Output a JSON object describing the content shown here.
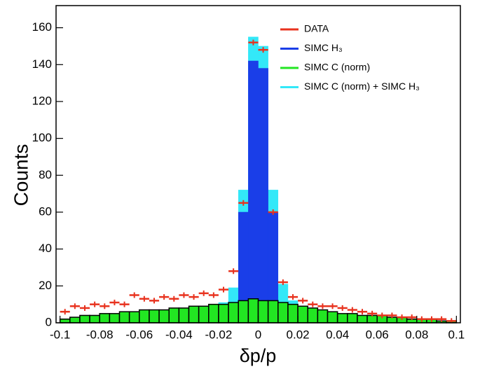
{
  "chart_data": {
    "type": "histogram",
    "xlabel": "δp/p",
    "ylabel": "Counts",
    "bins": [
      -0.1,
      -0.095,
      -0.09,
      -0.085,
      -0.08,
      -0.075,
      -0.07,
      -0.065,
      -0.06,
      -0.055,
      -0.05,
      -0.045,
      -0.04,
      -0.035,
      -0.03,
      -0.025,
      -0.02,
      -0.015,
      -0.01,
      -0.005,
      0,
      0.005,
      0.01,
      0.015,
      0.02,
      0.025,
      0.03,
      0.035,
      0.04,
      0.045,
      0.05,
      0.055,
      0.06,
      0.065,
      0.07,
      0.075,
      0.08,
      0.085,
      0.09,
      0.095,
      0.1
    ],
    "series": [
      {
        "name": "DATA",
        "color": "#e8321e",
        "filled": false,
        "values": [
          6,
          9,
          8,
          10,
          9,
          11,
          10,
          15,
          13,
          12,
          14,
          13,
          15,
          14,
          16,
          15,
          18,
          28,
          65,
          152,
          148,
          60,
          22,
          14,
          12,
          10,
          9,
          9,
          8,
          7,
          6,
          5,
          4,
          4,
          3,
          3,
          2,
          2,
          2,
          1
        ]
      },
      {
        "name": "SIMC H₃",
        "color": "#1a3ee8",
        "filled": true,
        "values": [
          0,
          0,
          0,
          0,
          0,
          0,
          0,
          0,
          0,
          0,
          0,
          0,
          0,
          0,
          0,
          0,
          1,
          8,
          60,
          142,
          138,
          60,
          10,
          2,
          0,
          0,
          0,
          0,
          0,
          0,
          0,
          0,
          0,
          0,
          0,
          0,
          0,
          0,
          0,
          0
        ]
      },
      {
        "name": "SIMC C (norm)",
        "color": "#22e622",
        "filled": true,
        "edge_color": "#000000",
        "values": [
          2,
          3,
          4,
          4,
          5,
          5,
          6,
          6,
          7,
          7,
          7,
          8,
          8,
          9,
          9,
          10,
          10,
          11,
          12,
          13,
          12,
          12,
          11,
          10,
          9,
          8,
          7,
          6,
          5,
          5,
          4,
          4,
          4,
          3,
          3,
          2,
          2,
          2,
          1,
          1
        ]
      },
      {
        "name": "SIMC C (norm) + SIMC H₃",
        "color": "#33e8f8",
        "filled": true,
        "values": [
          2,
          3,
          4,
          4,
          5,
          5,
          6,
          6,
          7,
          7,
          7,
          8,
          8,
          9,
          9,
          10,
          11,
          19,
          72,
          155,
          150,
          72,
          21,
          12,
          9,
          8,
          7,
          6,
          5,
          5,
          4,
          4,
          4,
          3,
          3,
          2,
          2,
          2,
          1,
          1
        ]
      }
    ],
    "draw_order": [
      3,
      1,
      2,
      0
    ],
    "xlim": [
      -0.102,
      0.102
    ],
    "xticks": [
      -0.1,
      -0.08,
      -0.06,
      -0.04,
      -0.02,
      0,
      0.02,
      0.04,
      0.06,
      0.08,
      0.1
    ],
    "ylim": [
      0,
      172
    ],
    "yticks": [
      0,
      20,
      40,
      60,
      80,
      100,
      120,
      140,
      160
    ],
    "legend": "top-right"
  }
}
